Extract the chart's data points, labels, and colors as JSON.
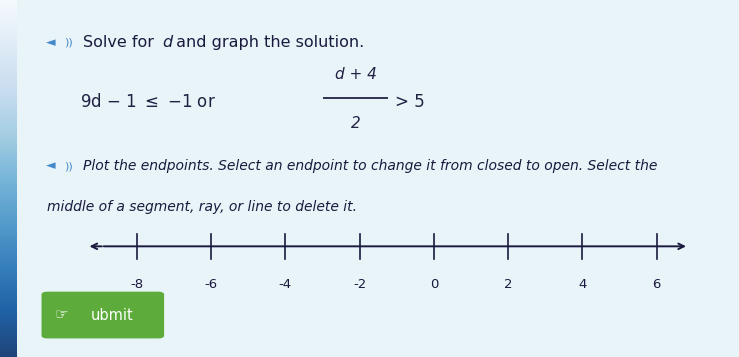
{
  "bg_color": "#e8f4f8",
  "content_bg": "#e8ecf0",
  "title_text": "Solve for d and graph the solution.",
  "instruction_text1": "Plot the endpoints. Select an endpoint to change it from closed to open. Select the",
  "instruction_text2": "middle of a segment, ray, or line to delete it.",
  "submit_label": "ubmit",
  "number_line_ticks": [
    -8,
    -6,
    -4,
    -2,
    0,
    2,
    4,
    6
  ],
  "accent_color": "#4aa8d8",
  "left_bar_color": "#5bb8e8",
  "text_color": "#1a1a3e",
  "submit_bg": "#5dab3a",
  "submit_text_color": "#ffffff",
  "speaker_color": "#4488cc",
  "eq_color": "#222244"
}
